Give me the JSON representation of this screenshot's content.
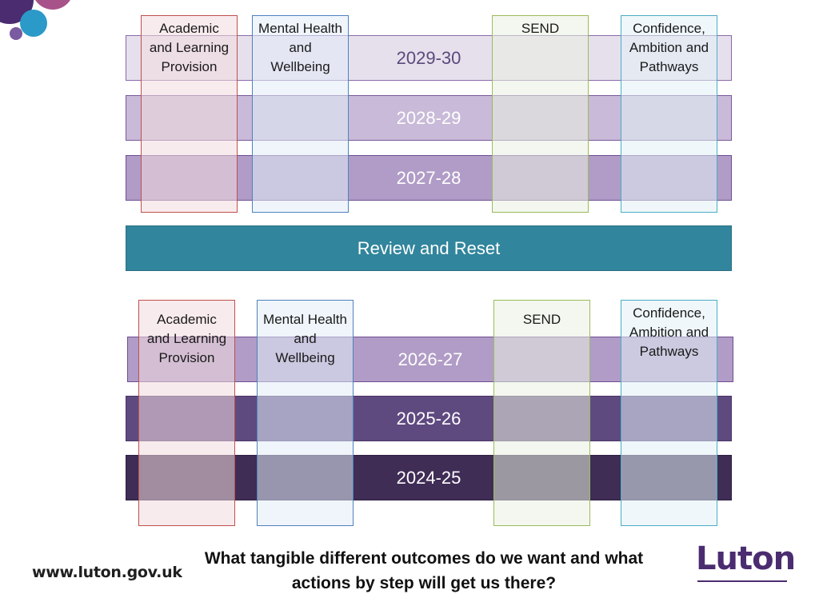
{
  "top_section": {
    "years": [
      "2029-30",
      "2028-29",
      "2027-28"
    ],
    "columns": {
      "academic": "Academic and Learning Provision",
      "mental": "Mental Health and Wellbeing",
      "send": "SEND",
      "confidence": "Confidence, Ambition and Pathways"
    }
  },
  "review": {
    "label": "Review and Reset"
  },
  "bottom_section": {
    "years": [
      "2026-27",
      "2025-26",
      "2024-25"
    ],
    "columns": {
      "academic": "Academic and Learning Provision",
      "mental": "Mental Health and Wellbeing",
      "send": "SEND",
      "confidence": "Confidence, Ambition and Pathways"
    }
  },
  "footer": {
    "question": "What tangible different outcomes do we want and what actions by step will get us there?",
    "url": "www.luton.gov.uk",
    "logo": "Luton"
  },
  "colors": {
    "banner": "#31859c",
    "logo": "#4b2c70"
  }
}
